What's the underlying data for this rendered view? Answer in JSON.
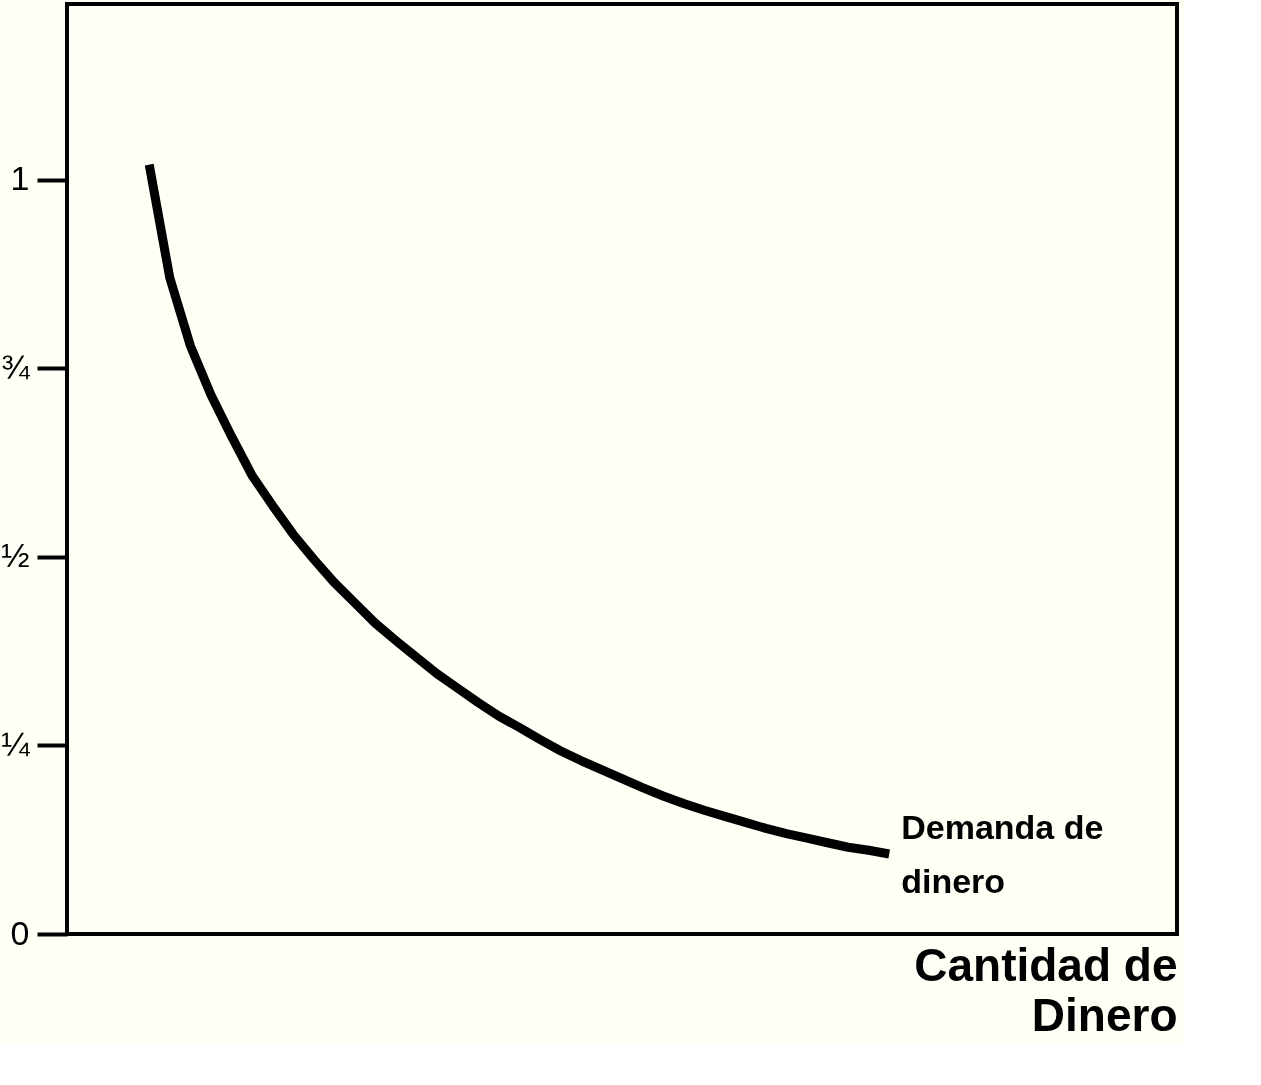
{
  "chart_data": {
    "type": "line",
    "categories": [
      null,
      null,
      null,
      null,
      null,
      null,
      null,
      null,
      null,
      null,
      null,
      null,
      null,
      null,
      null,
      null,
      null,
      null,
      null,
      null,
      null,
      null,
      null,
      null,
      null,
      null,
      null,
      null,
      null,
      null,
      null,
      null,
      null,
      null,
      null,
      null,
      null,
      null,
      null,
      null,
      null,
      null,
      null,
      null,
      null,
      null,
      null,
      null,
      null,
      null,
      null,
      null,
      null,
      null,
      null
    ],
    "series": [
      {
        "color": "#000000",
        "values": [
          null,
          null,
          null,
          null,
          1.02,
          0.87,
          0.78,
          0.715,
          0.66,
          0.608,
          0.568,
          0.53,
          0.497,
          0.466,
          0.439,
          0.412,
          0.389,
          0.367,
          0.345,
          0.326,
          0.307,
          0.289,
          0.274,
          0.258,
          0.243,
          0.23,
          0.218,
          0.206,
          0.194,
          0.183,
          0.173,
          0.164,
          0.156,
          0.148,
          0.14,
          0.133,
          0.127,
          0.121,
          0.115,
          0.111,
          0.106,
          null,
          null,
          null,
          null,
          null,
          null,
          null,
          null,
          null,
          null,
          null,
          null,
          null,
          null
        ]
      }
    ],
    "xlabel": "Cantidad de\nDinero",
    "annotations": [
      "Demanda de\ndinero"
    ],
    "ylim": [
      0,
      1.233
    ],
    "yticks": [
      0,
      {
        "value": 0.25,
        "label": "¼"
      },
      {
        "value": 0.5,
        "label": "½"
      },
      {
        "value": 0.75,
        "label": "¾"
      },
      1
    ],
    "tick_labels": "y",
    "grid": false,
    "marker": "none",
    "line_style": "solid"
  }
}
